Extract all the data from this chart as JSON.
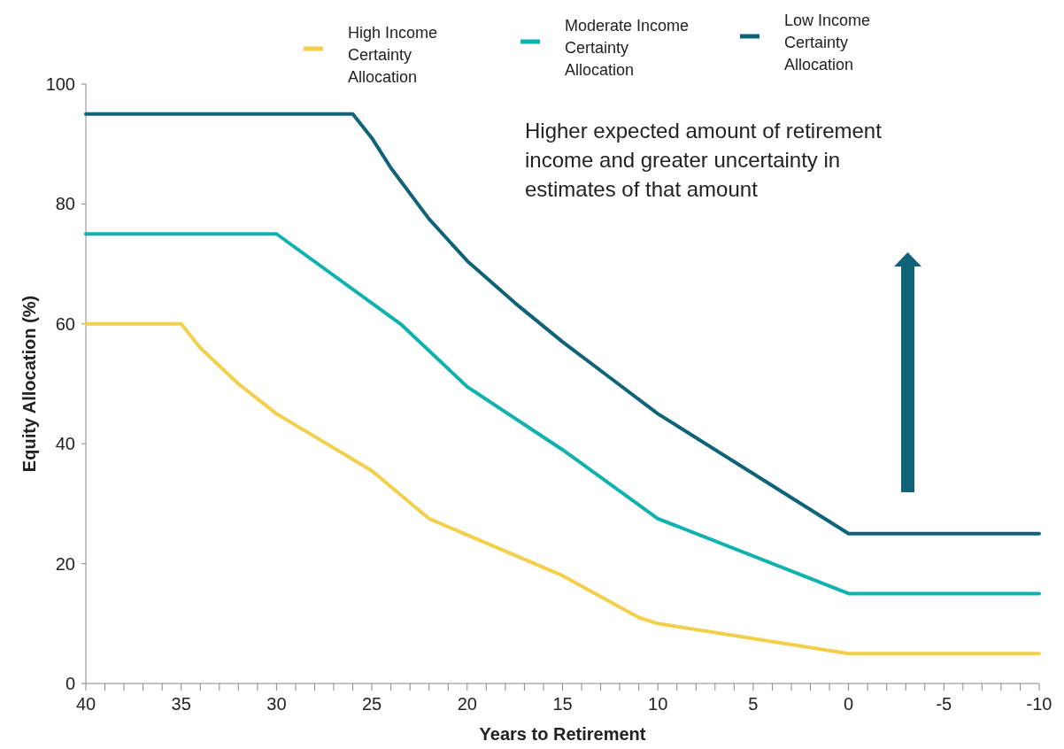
{
  "chart_data": {
    "type": "line",
    "xlabel": "Years to Retirement",
    "ylabel": "Equity Allocation (%)",
    "xlim": [
      40,
      -10
    ],
    "ylim": [
      0,
      100
    ],
    "xticks": [
      40,
      {
        "value": 39,
        "label": null
      },
      {
        "value": 38,
        "label": null
      },
      {
        "value": 37,
        "label": null
      },
      {
        "value": 36,
        "label": null
      },
      35,
      {
        "value": 34,
        "label": null
      },
      {
        "value": 33,
        "label": null
      },
      {
        "value": 32,
        "label": null
      },
      {
        "value": 31,
        "label": null
      },
      30,
      {
        "value": 29,
        "label": null
      },
      {
        "value": 28,
        "label": null
      },
      {
        "value": 27,
        "label": null
      },
      {
        "value": 26,
        "label": null
      },
      25,
      {
        "value": 24,
        "label": null
      },
      {
        "value": 23,
        "label": null
      },
      {
        "value": 22,
        "label": null
      },
      {
        "value": 21,
        "label": null
      },
      20,
      {
        "value": 19,
        "label": null
      },
      {
        "value": 18,
        "label": null
      },
      {
        "value": 17,
        "label": null
      },
      {
        "value": 16,
        "label": null
      },
      15,
      {
        "value": 14,
        "label": null
      },
      {
        "value": 13,
        "label": null
      },
      {
        "value": 12,
        "label": null
      },
      {
        "value": 11,
        "label": null
      },
      10,
      {
        "value": 9,
        "label": null
      },
      {
        "value": 8,
        "label": null
      },
      {
        "value": 7,
        "label": null
      },
      {
        "value": 6,
        "label": null
      },
      5,
      {
        "value": 4,
        "label": null
      },
      {
        "value": 3,
        "label": null
      },
      {
        "value": 2,
        "label": null
      },
      {
        "value": 1,
        "label": null
      },
      0,
      {
        "value": -1,
        "label": null
      },
      {
        "value": -2,
        "label": null
      },
      {
        "value": -3,
        "label": null
      },
      {
        "value": -4,
        "label": null
      },
      -5,
      {
        "value": -6,
        "label": null
      },
      {
        "value": -7,
        "label": null
      },
      {
        "value": -8,
        "label": null
      },
      {
        "value": -9,
        "label": null
      },
      -10
    ],
    "yticks": [
      0,
      20,
      40,
      60,
      80,
      100
    ],
    "legend": "top",
    "marker": "none",
    "line_style": "solid",
    "grid": false,
    "series": [
      {
        "name": "High Income Certainty Allocation",
        "color": "#f2d04b",
        "x": [
          40,
          35,
          34,
          32,
          30,
          25,
          22,
          15,
          11,
          10,
          0,
          -10
        ],
        "values": [
          60,
          60,
          56,
          50,
          45,
          35.5,
          27.5,
          18,
          11,
          10,
          5,
          5
        ]
      },
      {
        "name": "Moderate Income Certainty Allocation",
        "color": "#10b2b0",
        "x": [
          40,
          30,
          23.5,
          20,
          15,
          10,
          0,
          -10
        ],
        "values": [
          75,
          75,
          60,
          49.5,
          39,
          27.5,
          15,
          15
        ]
      },
      {
        "name": "Low Income Certainty Allocation",
        "color": "#0f6378",
        "x": [
          40,
          26,
          25,
          24,
          22,
          20,
          17.5,
          15,
          12.5,
          10,
          5,
          0,
          -10
        ],
        "values": [
          95,
          95,
          91,
          86,
          77.5,
          70.5,
          63.5,
          57,
          51,
          45,
          35,
          25,
          25
        ]
      }
    ],
    "annotations": [
      "Higher expected amount of retirement income and greater uncertainty in estimates of that amount"
    ]
  }
}
